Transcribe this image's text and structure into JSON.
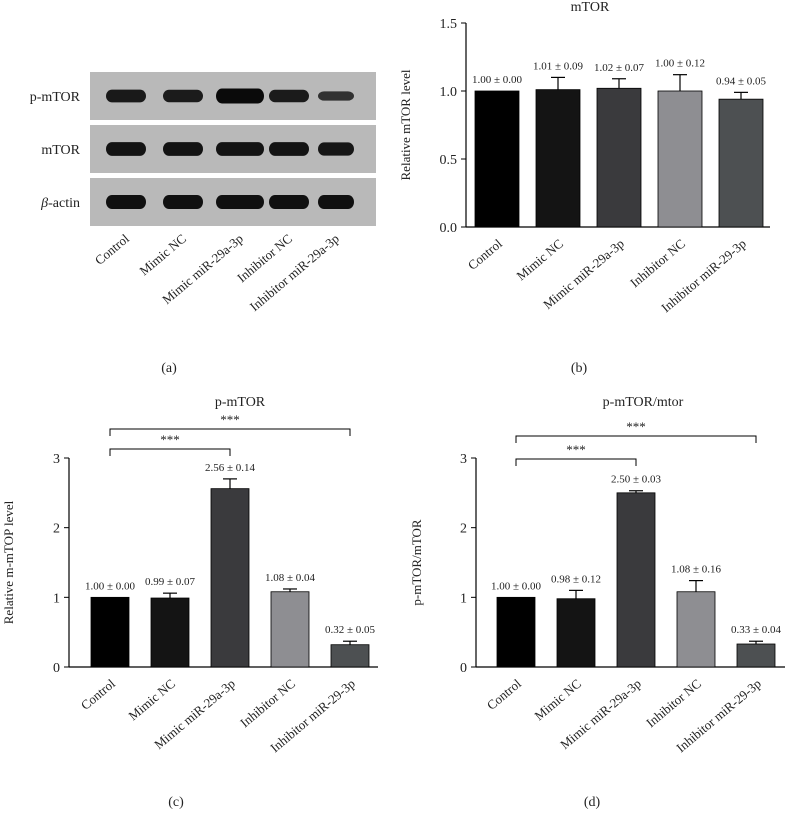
{
  "panel_labels": [
    "(a)",
    "(b)",
    "(c)",
    "(d)"
  ],
  "blot": {
    "rows": [
      "p-mTOR",
      "mTOR",
      "β-actin"
    ],
    "lanes": [
      "Control",
      "Mimic NC",
      "Mimic miR-29a-3p",
      "Inhibitor NC",
      "Inhibitor miR-29a-3p"
    ],
    "band_intensity": [
      [
        0.75,
        0.72,
        1.0,
        0.72,
        0.35
      ],
      [
        0.85,
        0.85,
        0.85,
        0.85,
        0.8
      ],
      [
        0.9,
        0.9,
        0.9,
        0.9,
        0.9
      ]
    ]
  },
  "chart_data": [
    {
      "id": "b",
      "type": "bar",
      "title": "mTOR",
      "xlabel": "",
      "ylabel": "Relative mTOR level",
      "ylim": [
        0,
        1.5
      ],
      "yticks": [
        "0.0",
        "0.5",
        "1.0",
        "1.5"
      ],
      "categories": [
        "Control",
        "Mimic NC",
        "Mimic miR-29a-3p",
        "Inhibitor NC",
        "Inhibitor miR-29-3p"
      ],
      "values": [
        1.0,
        1.01,
        1.02,
        1.0,
        0.94
      ],
      "errors": [
        0.0,
        0.09,
        0.07,
        0.12,
        0.05
      ],
      "value_labels": [
        "1.00 ± 0.00",
        "1.01 ± 0.09",
        "1.02 ± 0.07",
        "1.00 ± 0.12",
        "0.94 ± 0.05"
      ],
      "colors": [
        "#000000",
        "#141414",
        "#3a3a3d",
        "#8e8e92",
        "#4d5052"
      ],
      "significance": []
    },
    {
      "id": "c",
      "type": "bar",
      "title": "p-mTOR",
      "xlabel": "",
      "ylabel": "Relative m-mTOP level",
      "ylim": [
        0,
        3
      ],
      "yticks": [
        "0",
        "1",
        "2",
        "3"
      ],
      "categories": [
        "Control",
        "Mimic NC",
        "Mimic miR-29a-3p",
        "Inhibitor NC",
        "Inhibitor miR-29-3p"
      ],
      "values": [
        1.0,
        0.99,
        2.56,
        1.08,
        0.32
      ],
      "errors": [
        0.0,
        0.07,
        0.14,
        0.04,
        0.05
      ],
      "value_labels": [
        "1.00 ± 0.00",
        "0.99 ± 0.07",
        "2.56 ± 0.14",
        "1.08 ± 0.04",
        "0.32 ± 0.05"
      ],
      "colors": [
        "#000000",
        "#141414",
        "#3a3a3d",
        "#8e8e92",
        "#4d5052"
      ],
      "significance": [
        {
          "from": 0,
          "to": 2,
          "label": "***"
        },
        {
          "from": 0,
          "to": 4,
          "label": "***"
        }
      ]
    },
    {
      "id": "d",
      "type": "bar",
      "title": "p-mTOR/mtor",
      "xlabel": "",
      "ylabel": "p-mTOR/mTOR",
      "ylim": [
        0,
        3
      ],
      "yticks": [
        "0",
        "1",
        "2",
        "3"
      ],
      "categories": [
        "Control",
        "Mimic NC",
        "Mimic miR-29a-3p",
        "Inhibitor NC",
        "Inhibitor miR-29-3p"
      ],
      "values": [
        1.0,
        0.98,
        2.5,
        1.08,
        0.33
      ],
      "errors": [
        0.0,
        0.12,
        0.03,
        0.16,
        0.04
      ],
      "value_labels": [
        "1.00 ± 0.00",
        "0.98 ± 0.12",
        "2.50 ± 0.03",
        "1.08 ± 0.16",
        "0.33 ± 0.04"
      ],
      "colors": [
        "#000000",
        "#141414",
        "#3a3a3d",
        "#8e8e92",
        "#4d5052"
      ],
      "significance": [
        {
          "from": 0,
          "to": 2,
          "label": "***"
        },
        {
          "from": 0,
          "to": 4,
          "label": "***"
        }
      ]
    }
  ]
}
